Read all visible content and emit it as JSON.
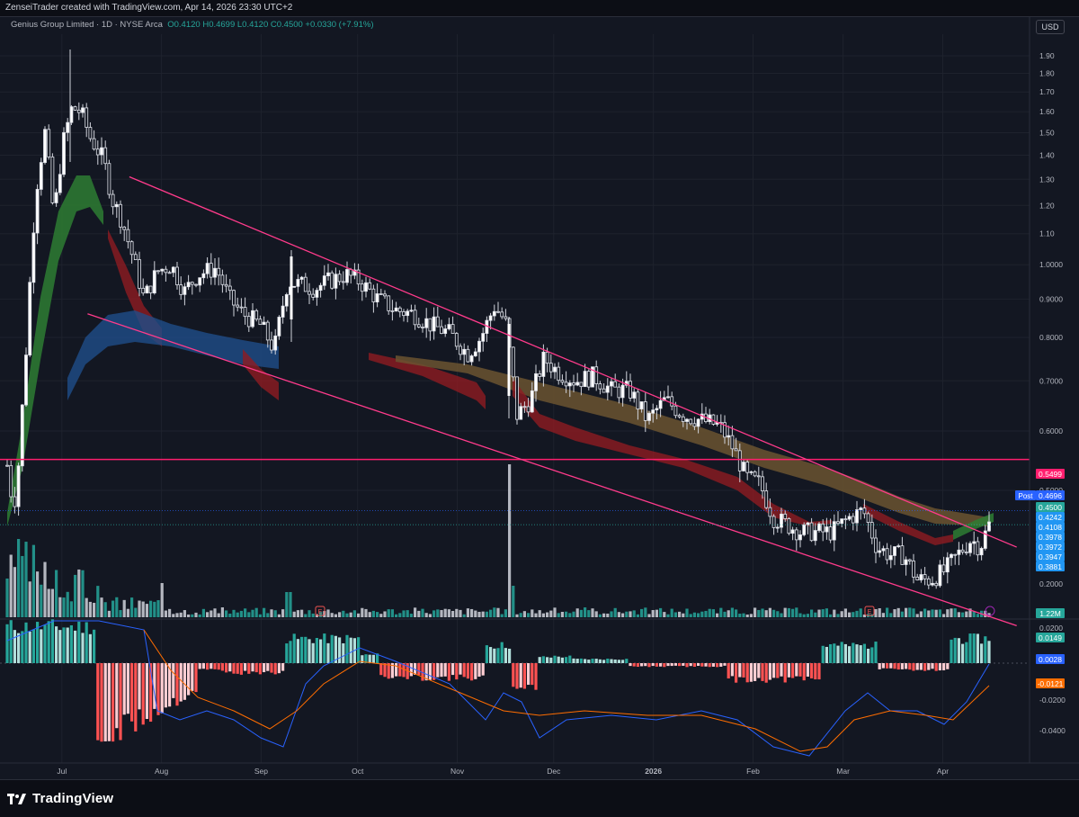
{
  "header": {
    "attribution": "ZenseiTrader created with TradingView.com, Apr 14, 2026 23:30 UTC+2"
  },
  "legend": {
    "symbol": "Genius Group Limited · 1D · NYSE Arca",
    "ohlc": "O0.4120 H0.4699 L0.4120 C0.4500 +0.0330 (+7.91%)"
  },
  "currency_label": "USD",
  "brand": "TradingView",
  "colors": {
    "background": "#131722",
    "up": "#ffffff",
    "down": "#ffffff",
    "trendline": "#ff3b8b",
    "level_line": "#ff1e6e",
    "ema_band_green": "#2e7d32",
    "ema_band_red": "#8e1b22",
    "ema_band_blue": "#1f4e89",
    "ema_band_brown": "#6b5430",
    "volume_up": "#26a69a",
    "volume_down": "#d1d4dc",
    "macd_line": "#2962ff",
    "signal_line": "#ff6d00",
    "hist_pos_strong": "#26a69a",
    "hist_pos_weak": "#b2dfdb",
    "hist_neg_strong": "#ff5252",
    "hist_neg_weak": "#ffcdd2"
  },
  "chart_data": {
    "type": "candlestick",
    "price_axis": {
      "ticks": [
        "1.90",
        "1.80",
        "1.70",
        "1.60",
        "1.50",
        "1.40",
        "1.30",
        "1.20",
        "1.10",
        "1.0000",
        "0.9000",
        "0.8000",
        "0.7000",
        "0.6000",
        "0.5000",
        "0.2000"
      ],
      "scale": "log"
    },
    "time_axis": {
      "labels": [
        "Jul",
        "Aug",
        "Sep",
        "Oct",
        "Nov",
        "Dec",
        "2026",
        "Feb",
        "Mar",
        "Apr"
      ]
    },
    "price_badges": [
      {
        "label": "",
        "value": "0.5499",
        "color": "#ff1e6e"
      },
      {
        "label": "Post",
        "value": "0.4696",
        "color": "#2962ff"
      },
      {
        "label": "",
        "value": "0.4500",
        "color": "#26a69a"
      },
      {
        "label": "",
        "value": "0.4242",
        "color": "#2196f3"
      },
      {
        "label": "",
        "value": "0.4108",
        "color": "#2196f3"
      },
      {
        "label": "",
        "value": "0.3978",
        "color": "#2196f3"
      },
      {
        "label": "",
        "value": "0.3972",
        "color": "#2196f3"
      },
      {
        "label": "",
        "value": "0.3947",
        "color": "#2196f3"
      },
      {
        "label": "",
        "value": "0.3881",
        "color": "#2196f3"
      }
    ],
    "horizontal_level": 0.5499,
    "last_close": 0.45,
    "trendlines": [
      {
        "name": "upper",
        "from": {
          "date": "2025-07-22",
          "price": 1.31
        },
        "to": {
          "date": "2026-04-24",
          "price": 0.42
        }
      },
      {
        "name": "lower",
        "from": {
          "date": "2025-07-09",
          "price": 0.86
        },
        "to": {
          "date": "2026-04-24",
          "price": 0.33
        }
      }
    ],
    "volume_badge": "1.22M",
    "earnings_markers": [
      "E",
      "E"
    ],
    "macd": {
      "ticks": [
        "0.0200",
        "-0.0200",
        "-0.0400"
      ],
      "badges": [
        {
          "value": "0.0149",
          "color": "#26a69a"
        },
        {
          "value": "0.0028",
          "color": "#2962ff"
        },
        {
          "value": "-0.0121",
          "color": "#ff6d00"
        }
      ]
    }
  }
}
